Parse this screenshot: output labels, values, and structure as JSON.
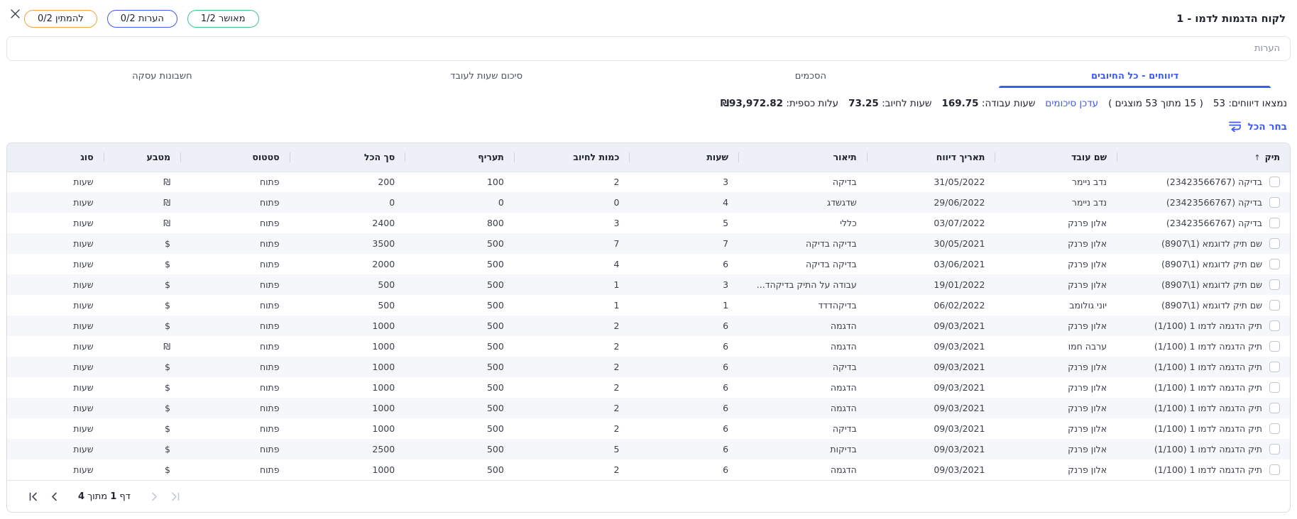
{
  "theme": {
    "accent": "#3d5af1",
    "header_bg": "#eef0f8",
    "stripe_bg": "#f6f7fb"
  },
  "window": {
    "title": "לקוח הדגמות לדמו - 1"
  },
  "status_pills": [
    {
      "id": "approved",
      "label": "מאושר 1/2",
      "color": "#3fc487"
    },
    {
      "id": "comments",
      "label": "הערות 0/2",
      "color": "#3d5af1"
    },
    {
      "id": "waiting",
      "label": "להמתין 0/2",
      "color": "#f1a33c"
    }
  ],
  "notes_field": {
    "placeholder": "הערות"
  },
  "tabs": [
    {
      "label": "דיווחים - כל החיובים",
      "active": true
    },
    {
      "label": "הסכמים",
      "active": false
    },
    {
      "label": "סיכום שעות לעובד",
      "active": false
    },
    {
      "label": "חשבונות עסקה",
      "active": false
    }
  ],
  "summary": {
    "found_label": "נמצאו דיווחים:",
    "found_value": "53",
    "shown": "( 15 מתוך 53 מוצגים )",
    "update_link": "עדכן סיכומים",
    "work_hours_label": "שעות עבודה:",
    "work_hours_value": "169.75",
    "billable_label": "שעות לחיוב:",
    "billable_value": "73.25",
    "cost_label": "עלות כספית:",
    "cost_value": "₪93,972.82"
  },
  "select_all": {
    "label": "בחר הכל"
  },
  "table": {
    "columns": [
      "תיק",
      "שם עובד",
      "תאריך דיווח",
      "תיאור",
      "שעות",
      "כמות לחיוב",
      "תעריף",
      "סך הכל",
      "סטטוס",
      "מטבע",
      "סוג"
    ],
    "sort_column_index": 0,
    "rows": [
      [
        "בדיקה (23423566767)",
        "נדב ניימר",
        "31/05/2022",
        "בדיקה",
        "3",
        "2",
        "100",
        "200",
        "פתוח",
        "₪",
        "שעות"
      ],
      [
        "בדיקה (23423566767)",
        "נדב ניימר",
        "29/06/2022",
        "שדגשדג",
        "4",
        "0",
        "0",
        "0",
        "פתוח",
        "₪",
        "שעות"
      ],
      [
        "בדיקה (23423566767)",
        "אלון פרנק",
        "03/07/2022",
        "כללי",
        "5",
        "3",
        "800",
        "2400",
        "פתוח",
        "₪",
        "שעות"
      ],
      [
        "שם תיק לדוגמא (1\\8907)",
        "אלון פרנק",
        "30/05/2021",
        "בדיקה בדיקה",
        "7",
        "7",
        "500",
        "3500",
        "פתוח",
        "$",
        "שעות"
      ],
      [
        "שם תיק לדוגמא (1\\8907)",
        "אלון פרנק",
        "03/06/2021",
        "בדיקה בדיקה",
        "6",
        "4",
        "500",
        "2000",
        "פתוח",
        "$",
        "שעות"
      ],
      [
        "שם תיק לדוגמא (1\\8907)",
        "אלון פרנק",
        "19/01/2022",
        "עבודה על התיק בדיקהד...",
        "3",
        "1",
        "500",
        "500",
        "פתוח",
        "$",
        "שעות"
      ],
      [
        "שם תיק לדוגמא (1\\8907)",
        "יוני גולומב",
        "06/02/2022",
        "בדיקהדדד",
        "1",
        "1",
        "500",
        "500",
        "פתוח",
        "$",
        "שעות"
      ],
      [
        "תיק הדגמה לדמו 1 (1/100)",
        "אלון פרנק",
        "09/03/2021",
        "הדגמה",
        "6",
        "2",
        "500",
        "1000",
        "פתוח",
        "$",
        "שעות"
      ],
      [
        "תיק הדגמה לדמו 1 (1/100)",
        "ערבה חמו",
        "09/03/2021",
        "הדגמה",
        "6",
        "2",
        "500",
        "1000",
        "פתוח",
        "₪",
        "שעות"
      ],
      [
        "תיק הדגמה לדמו 1 (1/100)",
        "אלון פרנק",
        "09/03/2021",
        "בדיקה",
        "6",
        "2",
        "500",
        "1000",
        "פתוח",
        "$",
        "שעות"
      ],
      [
        "תיק הדגמה לדמו 1 (1/100)",
        "אלון פרנק",
        "09/03/2021",
        "הדגמה",
        "6",
        "2",
        "500",
        "1000",
        "פתוח",
        "$",
        "שעות"
      ],
      [
        "תיק הדגמה לדמו 1 (1/100)",
        "אלון פרנק",
        "09/03/2021",
        "הדגמה",
        "6",
        "2",
        "500",
        "1000",
        "פתוח",
        "$",
        "שעות"
      ],
      [
        "תיק הדגמה לדמו 1 (1/100)",
        "אלון פרנק",
        "09/03/2021",
        "בדיקה",
        "6",
        "2",
        "500",
        "1000",
        "פתוח",
        "$",
        "שעות"
      ],
      [
        "תיק הדגמה לדמו 1 (1/100)",
        "אלון פרנק",
        "09/03/2021",
        "בדיקות",
        "6",
        "5",
        "500",
        "2500",
        "פתוח",
        "$",
        "שעות"
      ],
      [
        "תיק הדגמה לדמו 1 (1/100)",
        "אלון פרנק",
        "09/03/2021",
        "הדגמה",
        "6",
        "2",
        "500",
        "1000",
        "פתוח",
        "$",
        "שעות"
      ]
    ]
  },
  "pagination": {
    "page_label": "דף",
    "page": "1",
    "of_label": "מתוך",
    "total": "4"
  }
}
